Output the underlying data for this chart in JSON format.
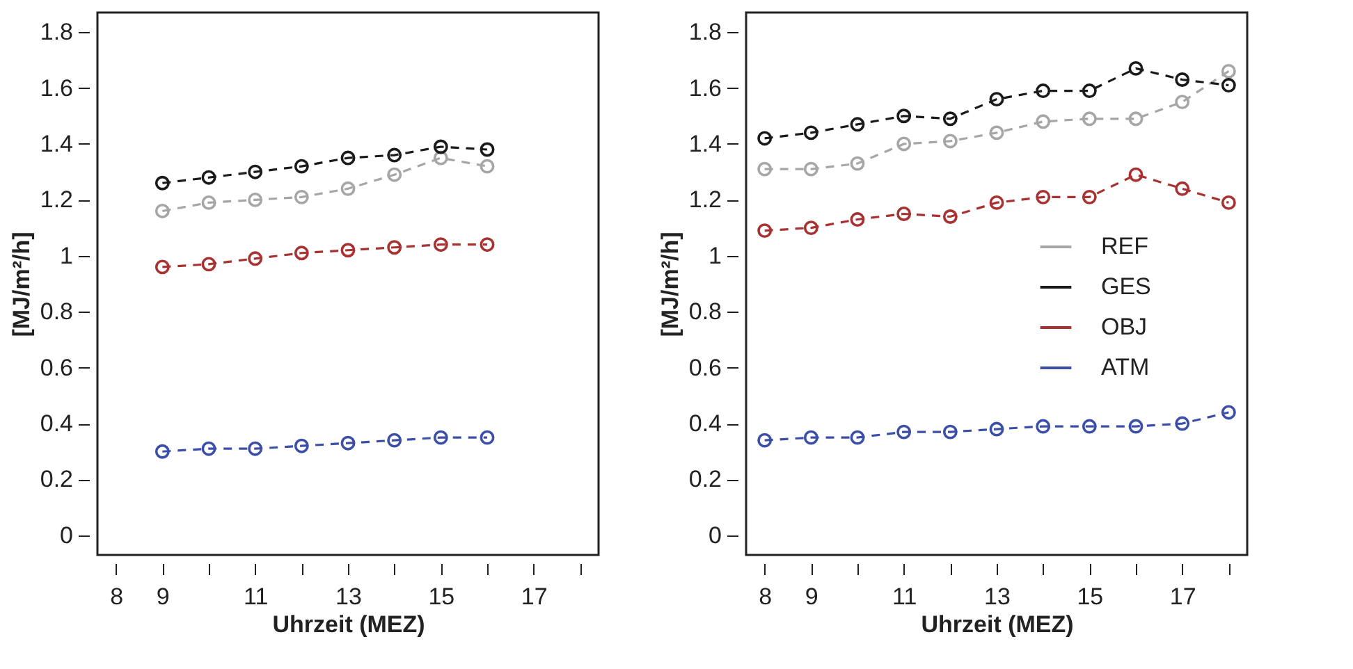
{
  "chart_data": [
    {
      "type": "line",
      "xlabel": "Uhrzeit (MEZ)",
      "ylabel": "[MJ/m²/h]",
      "x": [
        9,
        10,
        11,
        12,
        13,
        14,
        15,
        16
      ],
      "xlim": [
        7.6,
        18.4
      ],
      "ylim": [
        -0.07,
        1.87
      ],
      "xticks": [
        8,
        9,
        {
          "value": 10,
          "label": null
        },
        11,
        {
          "value": 12,
          "label": null
        },
        13,
        {
          "value": 14,
          "label": null
        },
        15,
        {
          "value": 16,
          "label": null
        },
        17,
        {
          "value": 18,
          "label": null
        }
      ],
      "yticks": [
        0,
        0.2,
        0.4,
        0.6,
        0.8,
        1,
        1.2,
        1.4,
        1.6,
        1.8
      ],
      "marker": "circle",
      "line_style": "dashed",
      "grid": false,
      "legend": false,
      "series": [
        {
          "color": "#a6a6a6",
          "values": [
            1.16,
            1.19,
            1.2,
            1.21,
            1.24,
            1.29,
            1.35,
            1.32
          ]
        },
        {
          "color": "#1a1a1a",
          "values": [
            1.26,
            1.28,
            1.3,
            1.32,
            1.35,
            1.36,
            1.39,
            1.38
          ]
        },
        {
          "color": "#a83232",
          "values": [
            0.96,
            0.97,
            0.99,
            1.01,
            1.02,
            1.03,
            1.04,
            1.04
          ]
        },
        {
          "color": "#3b4fa8",
          "values": [
            0.3,
            0.31,
            0.31,
            0.32,
            0.33,
            0.34,
            0.35,
            0.35
          ]
        }
      ]
    },
    {
      "type": "line",
      "xlabel": "Uhrzeit (MEZ)",
      "ylabel": "[MJ/m²/h]",
      "x": [
        8,
        9,
        10,
        11,
        12,
        13,
        14,
        15,
        16,
        17,
        18
      ],
      "xlim": [
        7.6,
        18.4
      ],
      "ylim": [
        -0.07,
        1.87
      ],
      "xticks": [
        8,
        9,
        {
          "value": 10,
          "label": null
        },
        11,
        {
          "value": 12,
          "label": null
        },
        13,
        {
          "value": 14,
          "label": null
        },
        15,
        {
          "value": 16,
          "label": null
        },
        17,
        {
          "value": 18,
          "label": null
        }
      ],
      "yticks": [
        0,
        0.2,
        0.4,
        0.6,
        0.8,
        1,
        1.2,
        1.4,
        1.6,
        1.8
      ],
      "marker": "circle",
      "line_style": "dashed",
      "grid": false,
      "legend": "right",
      "series": [
        {
          "name": "REF",
          "color": "#a6a6a6",
          "values": [
            1.31,
            1.31,
            1.33,
            1.4,
            1.41,
            1.44,
            1.48,
            1.49,
            1.49,
            1.55,
            1.66
          ]
        },
        {
          "name": "GES",
          "color": "#1a1a1a",
          "values": [
            1.42,
            1.44,
            1.47,
            1.5,
            1.49,
            1.56,
            1.59,
            1.59,
            1.67,
            1.63,
            1.61
          ]
        },
        {
          "name": "OBJ",
          "color": "#a83232",
          "values": [
            1.09,
            1.1,
            1.13,
            1.15,
            1.14,
            1.19,
            1.21,
            1.21,
            1.29,
            1.24,
            1.19
          ]
        },
        {
          "name": "ATM",
          "color": "#3b4fa8",
          "values": [
            0.34,
            0.35,
            0.35,
            0.37,
            0.37,
            0.38,
            0.39,
            0.39,
            0.39,
            0.4,
            0.44
          ]
        }
      ]
    }
  ]
}
